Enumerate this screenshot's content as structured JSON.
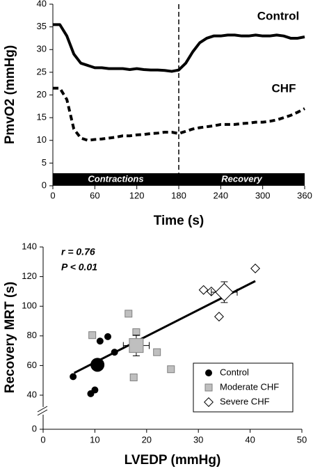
{
  "chart_data": [
    {
      "type": "line",
      "x_label": "Time (s)",
      "y_label": "PmvO2 (mmHg)",
      "x": [
        0,
        10,
        20,
        30,
        40,
        50,
        60,
        70,
        80,
        90,
        100,
        110,
        120,
        130,
        140,
        150,
        160,
        170,
        180,
        190,
        200,
        210,
        220,
        230,
        240,
        250,
        260,
        270,
        280,
        290,
        300,
        310,
        320,
        330,
        340,
        350,
        360
      ],
      "series": [
        {
          "name": "Control",
          "color": "#000000",
          "dashed": false,
          "values": [
            35.5,
            35.5,
            33,
            29,
            27,
            26.5,
            26,
            26,
            25.8,
            25.8,
            25.8,
            25.6,
            25.8,
            25.6,
            25.5,
            25.5,
            25.4,
            25.2,
            25.5,
            27,
            29.5,
            31.5,
            32.5,
            33,
            33,
            33.2,
            33.2,
            33,
            33,
            33.2,
            33,
            33,
            33.2,
            33,
            32.5,
            32.5,
            32.8
          ]
        },
        {
          "name": "CHF",
          "color": "#000000",
          "dashed": true,
          "values": [
            21.5,
            21.5,
            19,
            12.5,
            10.5,
            10,
            10.2,
            10.3,
            10.5,
            10.7,
            11,
            11,
            11.2,
            11.3,
            11.5,
            11.6,
            11.8,
            11.8,
            11.5,
            12,
            12.5,
            12.8,
            13,
            13.2,
            13.5,
            13.5,
            13.5,
            13.7,
            13.8,
            14,
            14,
            14.2,
            14.5,
            15,
            15.5,
            16.2,
            17
          ]
        }
      ],
      "xlim": [
        0,
        360
      ],
      "xticks": [
        0,
        60,
        120,
        180,
        240,
        300,
        360
      ],
      "ylim": [
        0,
        40
      ],
      "yticks": [
        0,
        5,
        10,
        15,
        20,
        25,
        30,
        35,
        40
      ],
      "vline": 180,
      "phases": [
        {
          "label": "Contractions",
          "start": 0,
          "end": 180
        },
        {
          "label": "Recovery",
          "start": 180,
          "end": 360
        }
      ]
    },
    {
      "type": "scatter",
      "x_label": "LVEDP (mmHg)",
      "y_label": "Recovery MRT (s)",
      "annotations": [
        "r = 0.76",
        "P < 0.01"
      ],
      "series": [
        {
          "name": "Control",
          "marker": "circle",
          "color": "#000000",
          "x": [
            5.8,
            9.2,
            10,
            11,
            12.5,
            13.8
          ],
          "values": [
            52.5,
            41,
            43.5,
            76.5,
            79.5,
            69
          ],
          "mean_x": 10.5,
          "mean_y": 60.5
        },
        {
          "name": "Moderate CHF",
          "marker": "square",
          "color": "#bfbfbf",
          "x": [
            9.5,
            16.5,
            18,
            17.5,
            22,
            24.7
          ],
          "values": [
            80.5,
            95,
            82.5,
            52,
            69,
            57.5
          ],
          "mean_x": 18,
          "mean_y": 73.5,
          "mean_xerr": 2.5,
          "mean_yerr": 7
        },
        {
          "name": "Severe CHF",
          "marker": "diamond",
          "color": "#ffffff",
          "x": [
            31,
            32.5,
            34,
            41
          ],
          "values": [
            111,
            110,
            93,
            125.5
          ],
          "mean_x": 35,
          "mean_y": 109.5,
          "mean_xerr": 2.5,
          "mean_yerr": 7
        }
      ],
      "fit": {
        "x": [
          6,
          41
        ],
        "y": [
          55,
          117
        ]
      },
      "xlim": [
        0,
        50
      ],
      "xticks": [
        0,
        10,
        20,
        30,
        40,
        50
      ],
      "ylim": [
        0,
        140
      ],
      "yticks": [
        0,
        40,
        60,
        80,
        100,
        120,
        140
      ],
      "axis_break": true,
      "legend": "lower right"
    }
  ]
}
